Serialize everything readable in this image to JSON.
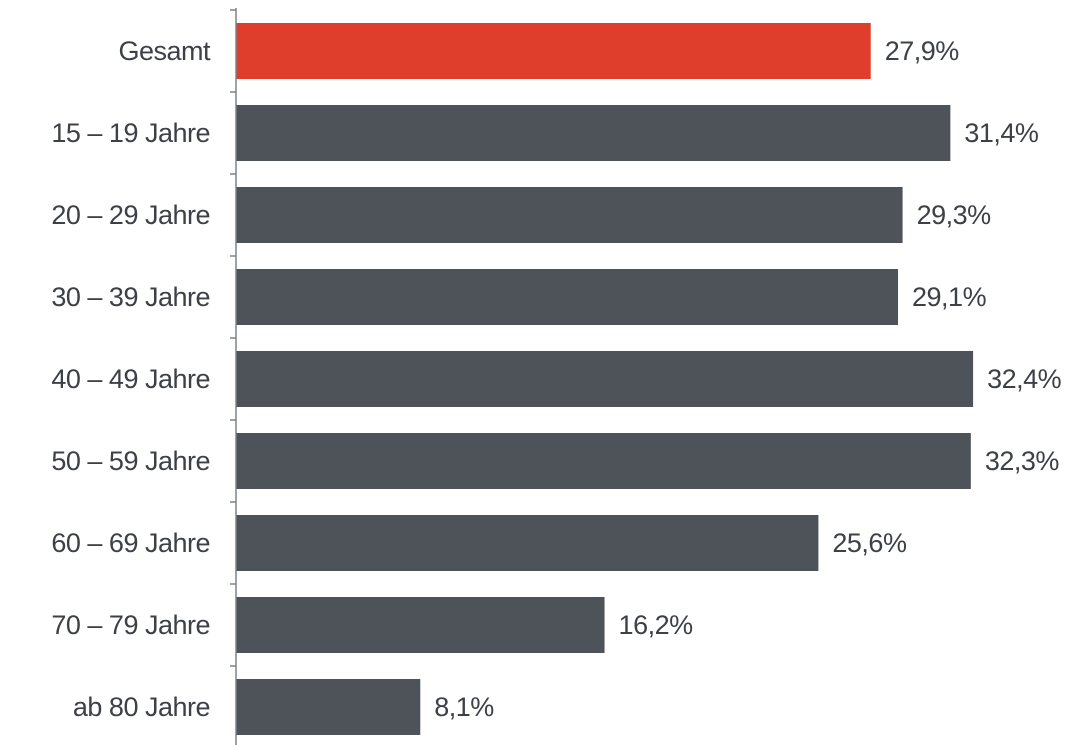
{
  "chart_data": {
    "type": "bar",
    "orientation": "horizontal",
    "categories": [
      "Gesamt",
      "15 – 19 Jahre",
      "20 – 29 Jahre",
      "30 – 39 Jahre",
      "40 – 49 Jahre",
      "50 – 59 Jahre",
      "60 – 69 Jahre",
      "70 – 79 Jahre",
      "ab 80 Jahre"
    ],
    "values": [
      27.9,
      31.4,
      29.3,
      29.1,
      32.4,
      32.3,
      25.6,
      16.2,
      8.1
    ],
    "value_labels": [
      "27,9%",
      "31,4%",
      "29,3%",
      "29,1%",
      "32,4%",
      "32,3%",
      "25,6%",
      "16,2%",
      "8,1%"
    ],
    "unit": "%",
    "xlim": [
      0,
      35
    ],
    "title": "",
    "xlabel": "",
    "ylabel": "",
    "grid": false,
    "legend": "none",
    "colors": {
      "highlight": "#e03e2d",
      "bar": "#4d5359",
      "text": "#3d4147",
      "axis": "#7f8288"
    },
    "highlight_index": 0
  }
}
